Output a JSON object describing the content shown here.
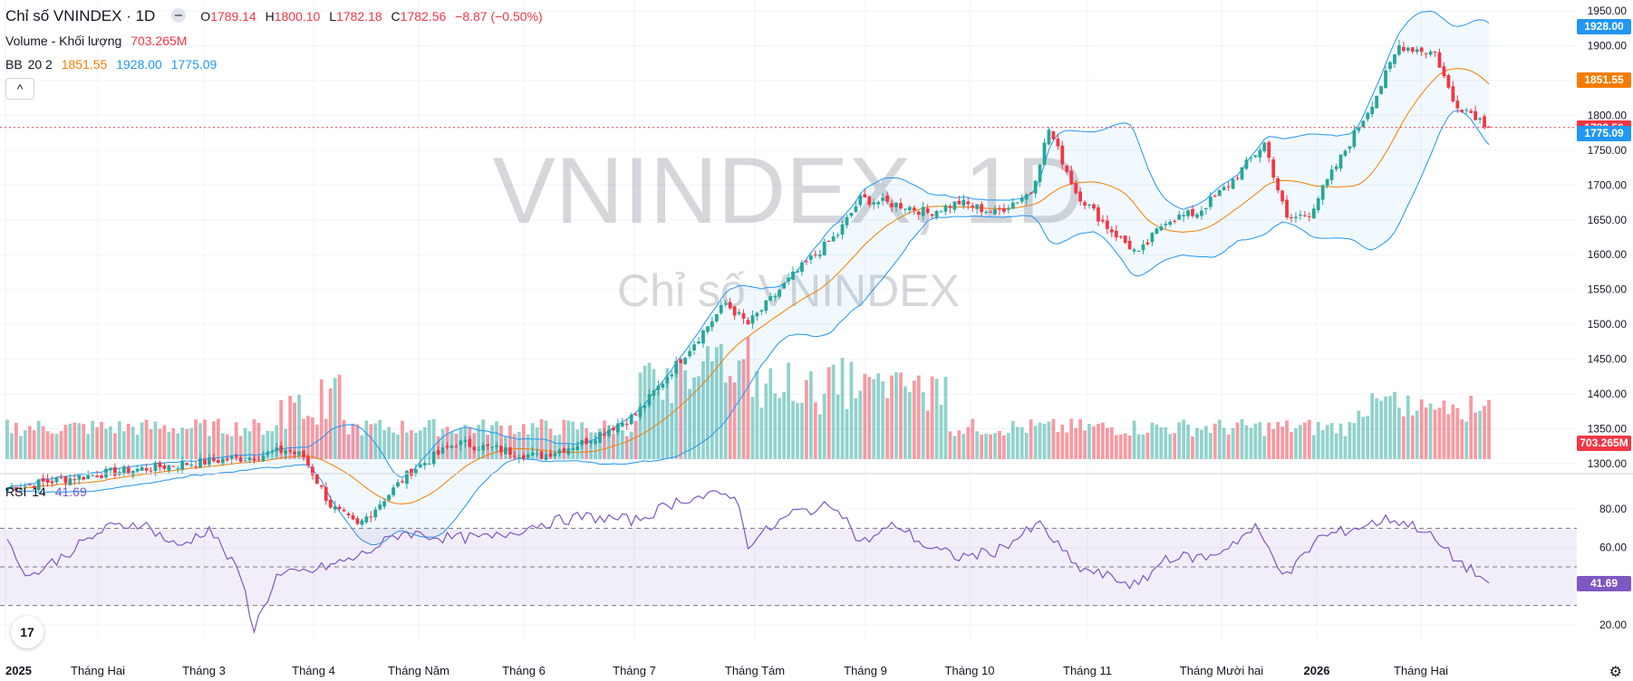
{
  "header": {
    "title": "Chỉ số VNINDEX · 1D",
    "ohlc": {
      "o_label": "O",
      "o": "1789.14",
      "h_label": "H",
      "h": "1800.10",
      "l_label": "L",
      "l": "1782.18",
      "c_label": "C",
      "c": "1782.56",
      "change": "−8.87 (−0.50%)"
    }
  },
  "volume_legend": {
    "label": "Volume - Khối lượng",
    "value": "703.265M"
  },
  "bb_legend": {
    "label": "BB",
    "params": "20 2",
    "basis": "1851.55",
    "upper": "1928.00",
    "lower": "1775.09"
  },
  "collapse_button": {
    "symbol": "^"
  },
  "watermark": {
    "symbol": "VNINDEX, 1D",
    "name": "Chỉ số VNINDEX"
  },
  "rsi_legend": {
    "label": "RSI",
    "param": "14",
    "value": "41.69"
  },
  "price_badges": [
    {
      "value": "1928.00",
      "color": "#2196f3",
      "price": 1928
    },
    {
      "value": "1851.55",
      "color": "#f57c00",
      "price": 1851.55
    },
    {
      "value": "1782.56",
      "color": "#f23645",
      "price": 1782.56
    },
    {
      "value": "1775.09",
      "color": "#2196f3",
      "price": 1775.09
    }
  ],
  "volume_badge": {
    "value": "703.265M",
    "color": "#f23645"
  },
  "rsi_badge": {
    "value": "41.69",
    "color": "#7e57c2"
  },
  "colors": {
    "up": "#26a69a",
    "down": "#f23645",
    "bb_band": "#2196f3",
    "bb_basis": "#f57c00",
    "rsi": "#7e57c2"
  },
  "chart_data": {
    "type": "candlestick",
    "title": "Chỉ số VNINDEX · 1D",
    "price_axis": {
      "ticks": [
        1950,
        1900,
        1850,
        1800,
        1750,
        1700,
        1650,
        1600,
        1550,
        1500,
        1450,
        1400,
        1350,
        1300
      ],
      "tick_labels": [
        "1950.00",
        "1900.00",
        "1850.00",
        "1800.00",
        "1750.00",
        "1700.00",
        "1650.00",
        "1600.00",
        "1550.00",
        "1500.00",
        "1450.00",
        "1400.00",
        "1350.00",
        "1300.00"
      ],
      "range": [
        1290,
        1960
      ]
    },
    "rsi_axis": {
      "ticks": [
        80,
        60,
        20
      ],
      "tick_labels": [
        "80.00",
        "60.00",
        "20.00"
      ],
      "bands": [
        70,
        50,
        30
      ],
      "range": [
        10,
        90
      ]
    },
    "x_labels": [
      "2025",
      "Tháng Hai",
      "Tháng 3",
      "Tháng 4",
      "Tháng Năm",
      "Tháng 6",
      "Tháng 7",
      "Tháng Tám",
      "Tháng 9",
      "Tháng 10",
      "Tháng 11",
      "Tháng Mười hai",
      "2026",
      "Tháng Hai"
    ],
    "x_label_bold": [
      true,
      false,
      false,
      false,
      false,
      false,
      false,
      false,
      false,
      false,
      false,
      false,
      true,
      false
    ],
    "last_close": 1782.56,
    "close_anchors": [
      [
        0,
        1265
      ],
      [
        20,
        1285
      ],
      [
        40,
        1300
      ],
      [
        55,
        1310
      ],
      [
        62,
        1320
      ],
      [
        66,
        1310
      ],
      [
        72,
        1240
      ],
      [
        78,
        1210
      ],
      [
        90,
        1290
      ],
      [
        100,
        1330
      ],
      [
        110,
        1320
      ],
      [
        118,
        1310
      ],
      [
        128,
        1330
      ],
      [
        140,
        1370
      ],
      [
        150,
        1450
      ],
      [
        160,
        1530
      ],
      [
        165,
        1500
      ],
      [
        175,
        1570
      ],
      [
        185,
        1630
      ],
      [
        190,
        1680
      ],
      [
        200,
        1670
      ],
      [
        205,
        1660
      ],
      [
        212,
        1675
      ],
      [
        220,
        1660
      ],
      [
        228,
        1690
      ],
      [
        232,
        1780
      ],
      [
        238,
        1690
      ],
      [
        245,
        1640
      ],
      [
        252,
        1600
      ],
      [
        258,
        1650
      ],
      [
        265,
        1660
      ],
      [
        272,
        1700
      ],
      [
        280,
        1760
      ],
      [
        285,
        1650
      ],
      [
        290,
        1660
      ],
      [
        298,
        1750
      ],
      [
        305,
        1830
      ],
      [
        310,
        1900
      ],
      [
        318,
        1890
      ],
      [
        322,
        1820
      ],
      [
        327,
        1800
      ],
      [
        330,
        1782.56
      ]
    ],
    "rsi_anchors": [
      [
        0,
        62
      ],
      [
        5,
        45
      ],
      [
        12,
        55
      ],
      [
        22,
        70
      ],
      [
        30,
        73
      ],
      [
        38,
        60
      ],
      [
        45,
        70
      ],
      [
        52,
        45
      ],
      [
        55,
        18
      ],
      [
        60,
        45
      ],
      [
        68,
        48
      ],
      [
        78,
        55
      ],
      [
        88,
        68
      ],
      [
        98,
        65
      ],
      [
        108,
        65
      ],
      [
        118,
        72
      ],
      [
        128,
        76
      ],
      [
        140,
        74
      ],
      [
        150,
        85
      ],
      [
        162,
        88
      ],
      [
        165,
        62
      ],
      [
        175,
        78
      ],
      [
        185,
        82
      ],
      [
        190,
        62
      ],
      [
        198,
        72
      ],
      [
        205,
        60
      ],
      [
        212,
        55
      ],
      [
        220,
        58
      ],
      [
        230,
        72
      ],
      [
        238,
        50
      ],
      [
        245,
        45
      ],
      [
        252,
        40
      ],
      [
        258,
        55
      ],
      [
        268,
        55
      ],
      [
        278,
        70
      ],
      [
        285,
        45
      ],
      [
        292,
        65
      ],
      [
        300,
        70
      ],
      [
        308,
        75
      ],
      [
        315,
        70
      ],
      [
        322,
        55
      ],
      [
        330,
        41.69
      ]
    ]
  }
}
